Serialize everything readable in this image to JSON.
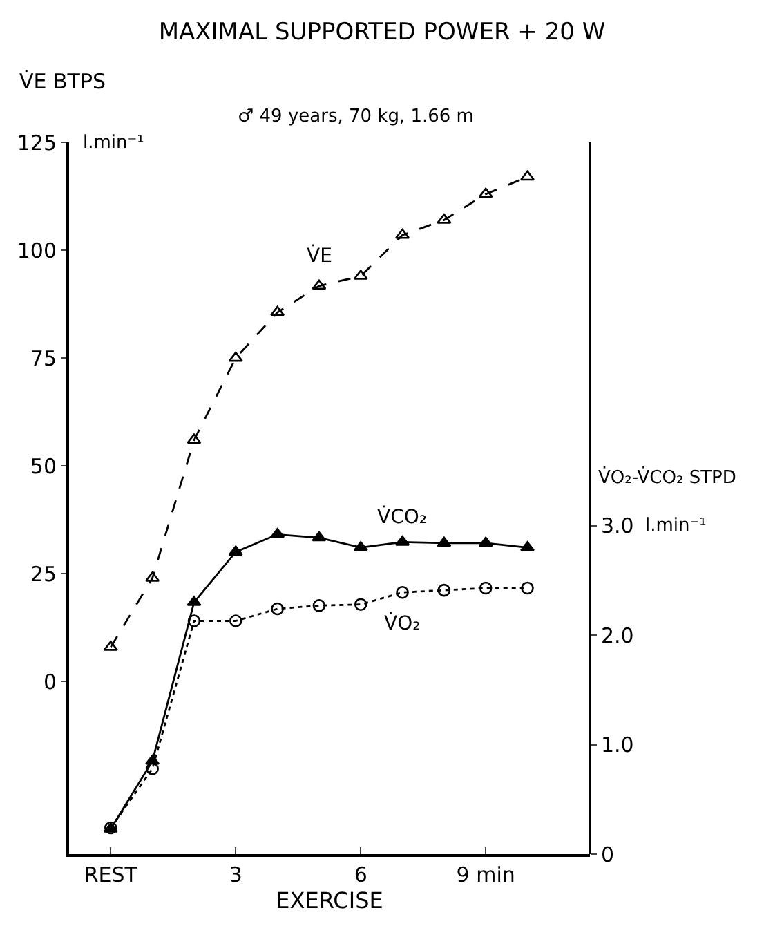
{
  "chart_data": {
    "type": "line",
    "title": "MAXIMAL SUPPORTED POWER + 20 W",
    "ylabel": "V̇E BTPS",
    "y2label": "V̇O₂-V̇CO₂ STPD",
    "xlabel": "EXERCISE",
    "annotations": [
      "♂ 49 years, 70 kg, 1.66 m",
      "l.min⁻¹",
      "l.min⁻¹"
    ],
    "x": [
      0,
      1,
      2,
      3,
      4,
      5,
      6,
      7,
      8,
      9,
      10
    ],
    "xlim": [
      -1,
      11.5
    ],
    "xticks": [
      {
        "value": 0,
        "label": "REST"
      },
      3,
      6,
      {
        "value": 9,
        "label": "9 min"
      }
    ],
    "ylim": [
      -40,
      125
    ],
    "yticks": [
      0,
      25,
      50,
      75,
      100,
      125
    ],
    "y2lim": [
      0,
      6.5
    ],
    "y2ticks": [
      0,
      {
        "value": 1,
        "label": "1.0"
      },
      {
        "value": 2,
        "label": "2.0"
      },
      {
        "value": 3,
        "label": "3.0"
      }
    ],
    "legend": false,
    "series": [
      {
        "name": "V̇E",
        "color": "#000000",
        "marker": "triangle",
        "line_style": "dashed",
        "values": [
          8,
          24,
          56,
          75,
          85.6,
          91.7,
          94,
          103.5,
          107,
          113,
          117
        ]
      },
      {
        "name": "V̇CO₂",
        "color": "#000000",
        "marker": "triangle",
        "line_style": "solid",
        "axis": "y2",
        "values": [
          0.23,
          0.85,
          2.3,
          2.76,
          2.92,
          2.89,
          2.8,
          2.85,
          2.84,
          2.84,
          2.8
        ]
      },
      {
        "name": "V̇O₂",
        "color": "#000000",
        "marker": "circle",
        "line_style": "dotted",
        "axis": "y2",
        "values": [
          0.24,
          0.78,
          2.13,
          2.13,
          2.24,
          2.27,
          2.28,
          2.39,
          2.41,
          2.43,
          2.43
        ]
      }
    ]
  }
}
